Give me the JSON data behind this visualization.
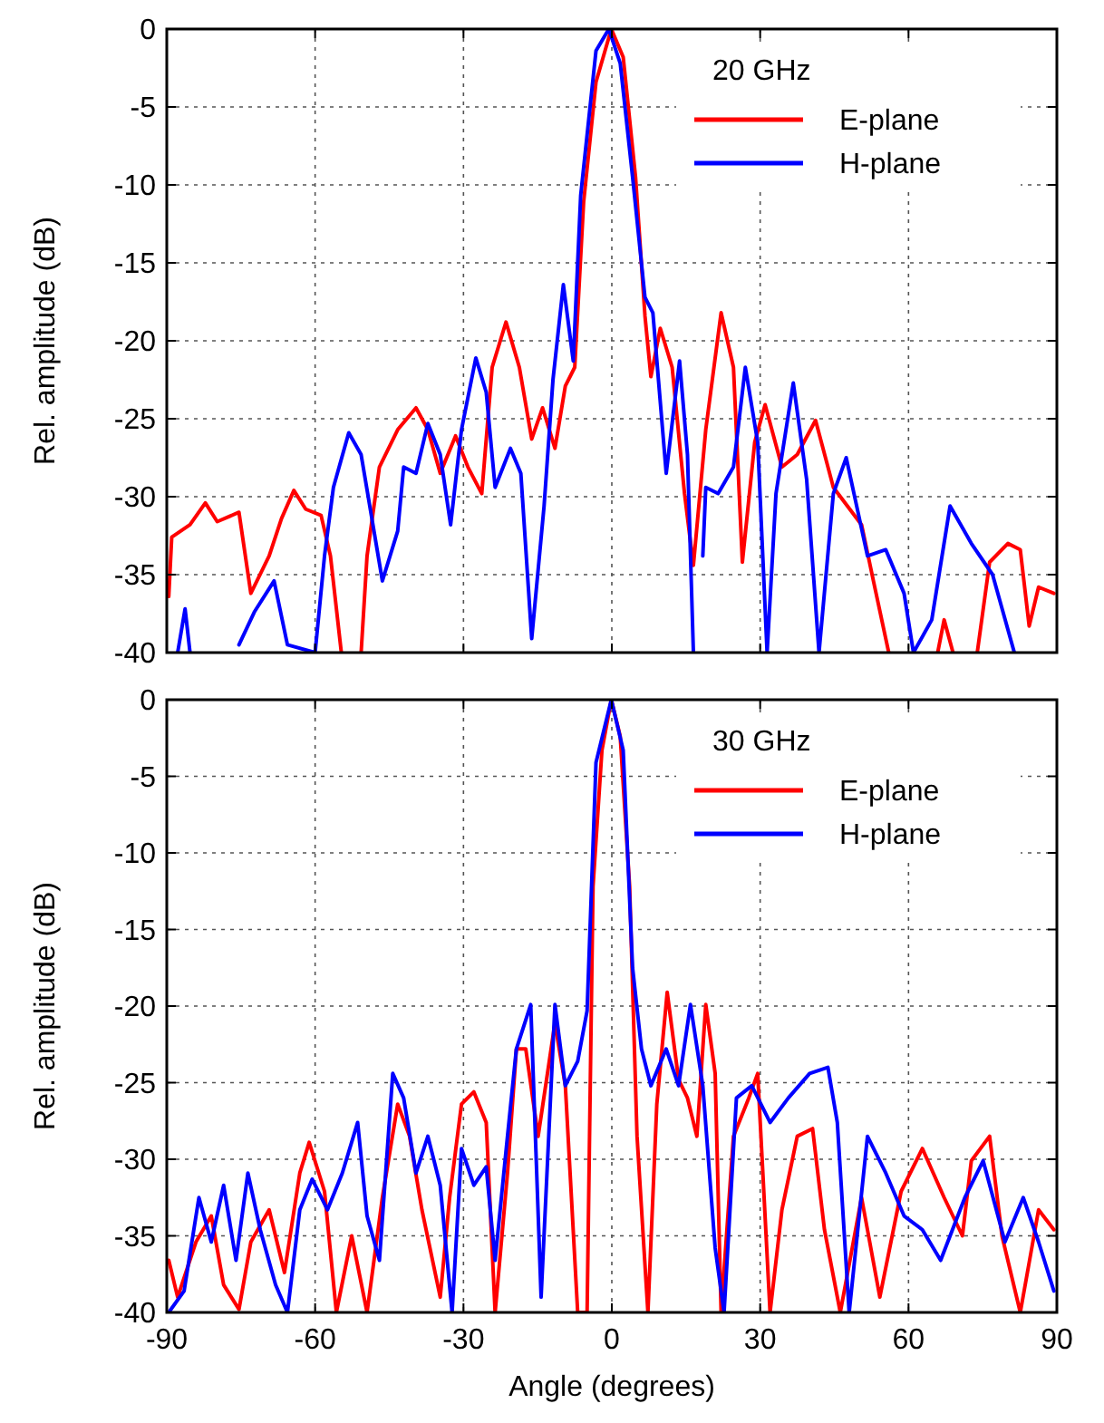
{
  "chart_data": [
    {
      "type": "line",
      "ylabel": "Rel. amplitude (dB)",
      "legend_title": "20 GHz",
      "xlim": [
        -90,
        90
      ],
      "xticks": [
        -90,
        -60,
        -30,
        0,
        30,
        60,
        90
      ],
      "ylim": [
        -40,
        0
      ],
      "yticks": [
        0,
        -5,
        -10,
        -15,
        -20,
        -25,
        -30,
        -35,
        -40
      ],
      "grid": true,
      "legend": "top right",
      "tick_labels": "y",
      "series": [
        {
          "name": "E-plane",
          "color": "#ff0000",
          "x": [
            -89.6,
            -89,
            -85.3,
            -82.2,
            -79.8,
            -75.4,
            -73,
            -69.3,
            -66.8,
            -64.3,
            -61.9,
            -58.8,
            -56.9,
            -54.7,
            -52,
            -50.7,
            -49.5,
            -47,
            -43.3,
            -39.6,
            -37.2,
            -34.7,
            -31.6,
            -29.1,
            -26.3,
            -24.2,
            -21.4,
            -18.7,
            -16.2,
            -14,
            -11.5,
            -9.4,
            -7.5,
            -5.7,
            -3.2,
            -0.1,
            2.3,
            4.8,
            6.7,
            7.9,
            9.8,
            12.2,
            14.7,
            16.5,
            19,
            22.1,
            24.6,
            26.4,
            28.9,
            31,
            34.4,
            37.5,
            41.2,
            44.8,
            50.5,
            52.9,
            56,
            60,
            65.9,
            67.2,
            69,
            72,
            73.9,
            76.4,
            80.1,
            82.6,
            84.4,
            86.3,
            89.4
          ],
          "values": [
            -36.4,
            -32.6,
            -31.8,
            -30.4,
            -31.6,
            -31,
            -36.2,
            -33.8,
            -31.4,
            -29.6,
            -30.8,
            -31.2,
            -33.8,
            -40,
            null,
            -40,
            -33.8,
            -28.1,
            -25.7,
            -24.3,
            -25.7,
            -28.5,
            -26.1,
            -28.1,
            -29.8,
            -21.7,
            -18.8,
            -21.7,
            -26.3,
            -24.3,
            -26.9,
            -22.9,
            -21.7,
            -11.1,
            -3.4,
            0,
            -1.8,
            -9.5,
            -18.4,
            -22.3,
            -19.2,
            -21.7,
            -29.8,
            -34.4,
            -25.7,
            -18.2,
            -21.7,
            -34.2,
            -26.5,
            -24.1,
            -28.1,
            -27.3,
            -25.1,
            -29.4,
            -31.8,
            -35.4,
            -40,
            null,
            -40,
            -37.9,
            -40,
            null,
            -40,
            -34.2,
            -33,
            -33.4,
            -38.3,
            -35.8,
            -36.2
          ]
        },
        {
          "name": "H-plane",
          "color": "#0000ff",
          "x": [
            -87.8,
            -86.3,
            -85.3,
            -80,
            -75.4,
            -72.3,
            -68.3,
            -65.6,
            -60,
            -58.1,
            -56.3,
            -53.2,
            -50.7,
            -46.4,
            -43.3,
            -42.1,
            -39.6,
            -37.2,
            -34.7,
            -32.6,
            -30.4,
            -27.5,
            -25.4,
            -23.6,
            -20.5,
            -18.4,
            -16.2,
            -13.7,
            -11.9,
            -9.8,
            -7.8,
            -6.3,
            -3.2,
            -0.6,
            1.7,
            4.2,
            6.7,
            8.3,
            11,
            13.7,
            15.3,
            16.5,
            17.5,
            18.4,
            19,
            21.5,
            24.6,
            27,
            29.5,
            31.4,
            33.2,
            36.7,
            39.4,
            41.9,
            44.8,
            47.4,
            51.7,
            55.4,
            59.1,
            61,
            64.7,
            68.4,
            72.7,
            77,
            81.4
          ],
          "values": [
            -40,
            -37.2,
            -40,
            null,
            -39.5,
            -37.4,
            -35.4,
            -39.5,
            -40,
            -33.8,
            -29.4,
            -25.9,
            -27.3,
            -35.4,
            -32.2,
            -28.1,
            -28.5,
            -25.3,
            -27.3,
            -31.8,
            -25.7,
            -21.1,
            -23.3,
            -29.4,
            -26.9,
            -28.5,
            -39.1,
            -30.6,
            -22.5,
            -16.4,
            -21.3,
            -10.7,
            -1.4,
            0,
            -2.2,
            -9.5,
            -17.2,
            -18.2,
            -28.5,
            -21.3,
            -27.3,
            -40,
            null,
            -33.8,
            -29.4,
            -29.8,
            -28.1,
            -21.7,
            -26.5,
            -40,
            -29.8,
            -22.7,
            -28.9,
            -40,
            -29.8,
            -27.5,
            -33.8,
            -33.4,
            -36.2,
            -40,
            -37.9,
            -30.6,
            -33,
            -35,
            -40
          ]
        }
      ]
    },
    {
      "type": "line",
      "xlabel": "Angle (degrees)",
      "ylabel": "Rel. amplitude (dB)",
      "legend_title": "30 GHz",
      "xlim": [
        -90,
        90
      ],
      "xticks": [
        -90,
        -60,
        -30,
        0,
        30,
        60,
        90
      ],
      "ylim": [
        -40,
        0
      ],
      "yticks": [
        0,
        -5,
        -10,
        -15,
        -20,
        -25,
        -30,
        -35,
        -40
      ],
      "grid": true,
      "legend": "top right",
      "series": [
        {
          "name": "E-plane",
          "color": "#ff0000",
          "x": [
            -89.6,
            -87.8,
            -84.1,
            -81,
            -78.5,
            -75.4,
            -73,
            -69.3,
            -66.2,
            -63.1,
            -61.2,
            -58.1,
            -55.7,
            -52.6,
            -49.5,
            -46.4,
            -43.3,
            -40.9,
            -38.4,
            -34.7,
            -32.8,
            -30.4,
            -27.9,
            -25.4,
            -23.6,
            -21.1,
            -19.3,
            -17.4,
            -14.9,
            -11.5,
            -9.4,
            -6.9,
            -5,
            -3.8,
            -2,
            -0.1,
            1.7,
            3.6,
            5.1,
            7.3,
            9.1,
            11.2,
            13.5,
            15.3,
            17.2,
            19,
            20.9,
            22.1,
            24.6,
            27.7,
            29.5,
            32,
            34.4,
            37.5,
            40.6,
            43,
            46.2,
            50.5,
            54.2,
            58.5,
            62.8,
            67.2,
            70.9,
            72.7,
            76.4,
            78.9,
            82.6,
            86.3,
            89.4
          ],
          "values": [
            -36.6,
            -39,
            -35.4,
            -33.7,
            -38.2,
            -39.8,
            -35.4,
            -33.3,
            -37.4,
            -30.9,
            -28.9,
            -32.1,
            -40,
            -35,
            -40,
            -32.5,
            -26.4,
            -28.5,
            -33.3,
            -39,
            -32.5,
            -26.4,
            -25.6,
            -27.6,
            -40,
            -30.9,
            -22.8,
            -22.8,
            -28.5,
            -21.1,
            -25.2,
            -40,
            -40,
            -12.2,
            -3.3,
            0,
            -2.4,
            -12.2,
            -28.5,
            -40,
            -26.4,
            -19.1,
            -24.8,
            -26,
            -28.5,
            -19.9,
            -24.4,
            -40,
            -28.5,
            -26,
            -24.4,
            -40,
            -33.3,
            -28.5,
            -28,
            -34.6,
            -40,
            -32.5,
            -39,
            -32.1,
            -29.3,
            -32.5,
            -35,
            -30.1,
            -28.5,
            -35,
            -40,
            -33.3,
            -34.6
          ]
        },
        {
          "name": "H-plane",
          "color": "#0000ff",
          "x": [
            -89.6,
            -86.5,
            -83.5,
            -81,
            -78.5,
            -76,
            -73.6,
            -71.1,
            -68,
            -65.6,
            -63.1,
            -60.6,
            -57.5,
            -54.5,
            -51.4,
            -49.5,
            -47,
            -44.3,
            -42.1,
            -39.6,
            -37.2,
            -34.7,
            -32.3,
            -30.4,
            -27.9,
            -25.4,
            -23.6,
            -21.1,
            -19.3,
            -16.4,
            -14.3,
            -11.5,
            -9.4,
            -6.9,
            -5,
            -3.2,
            -0.1,
            2.3,
            4.2,
            6,
            7.9,
            11,
            13.5,
            15.9,
            18.4,
            20.9,
            22.7,
            25.2,
            28.3,
            32,
            35.7,
            40,
            43.7,
            45.6,
            48,
            51.7,
            55.4,
            59.1,
            62.8,
            66.5,
            71.4,
            75.1,
            79.5,
            83.2,
            86.3,
            89.4
          ],
          "values": [
            -40,
            -38.6,
            -32.5,
            -35.4,
            -31.7,
            -36.6,
            -30.9,
            -34.6,
            -38.2,
            -40,
            -33.3,
            -31.3,
            -33.3,
            -30.9,
            -27.6,
            -33.7,
            -36.6,
            -24.4,
            -26,
            -30.9,
            -28.5,
            -31.7,
            -40,
            -29.3,
            -31.7,
            -30.5,
            -36.6,
            -28.5,
            -22.8,
            -19.9,
            -39,
            -19.9,
            -25.2,
            -23.6,
            -20.3,
            -4.1,
            0,
            -3.3,
            -17.5,
            -22.8,
            -25.2,
            -22.8,
            -25.2,
            -19.9,
            -25.2,
            -35.8,
            -40,
            -26,
            -25.2,
            -27.6,
            -26,
            -24.4,
            -24,
            -27.6,
            -40,
            -28.5,
            -30.9,
            -33.7,
            -34.6,
            -36.6,
            -32.5,
            -30.1,
            -35.4,
            -32.5,
            -35.4,
            -38.6
          ]
        }
      ]
    }
  ]
}
